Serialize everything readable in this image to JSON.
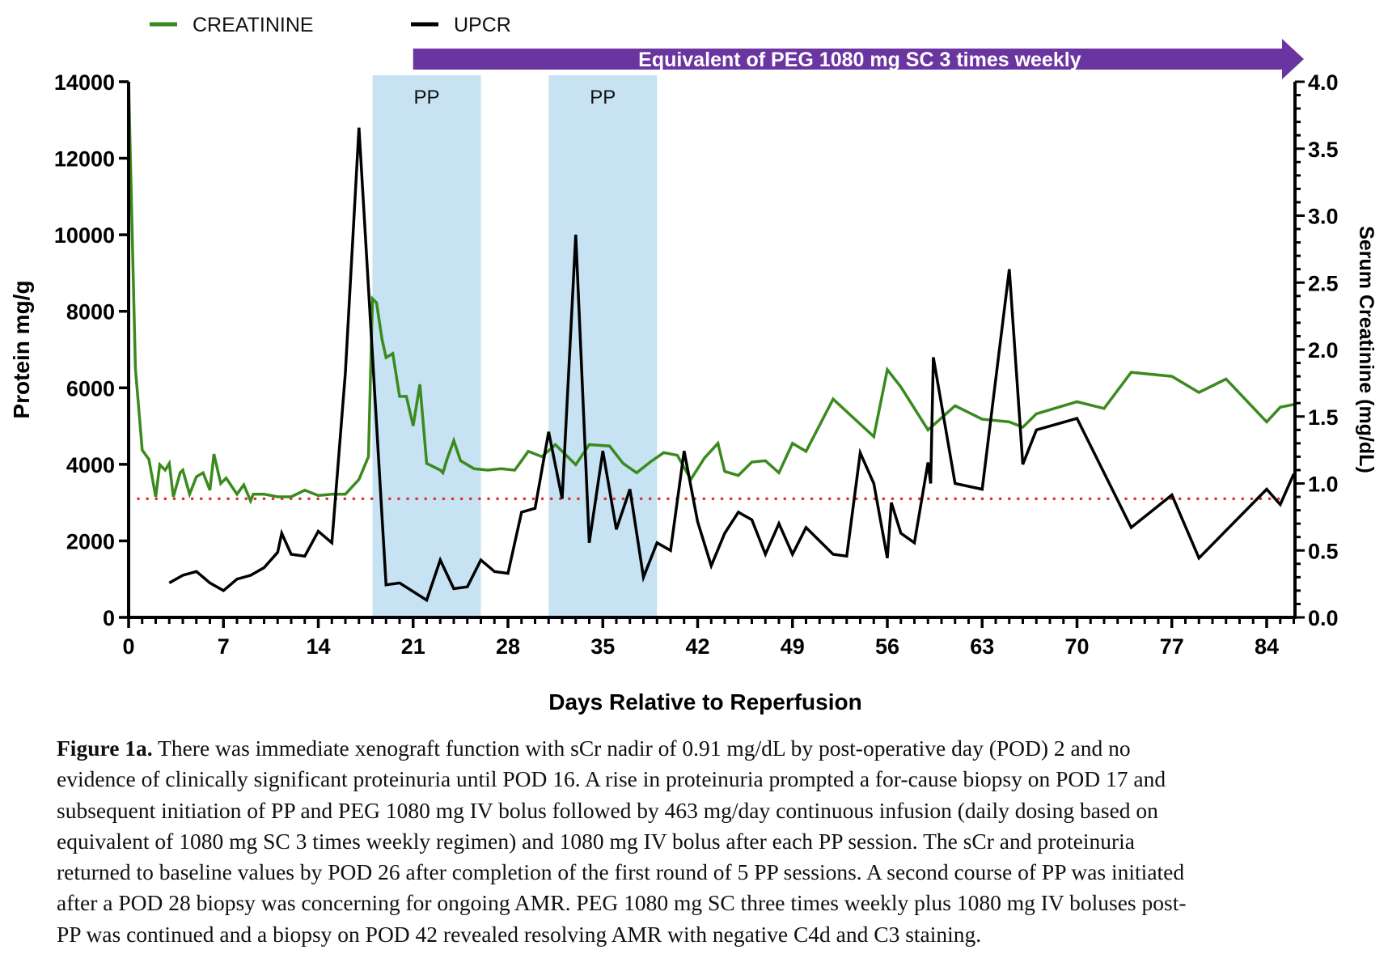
{
  "chart_data": {
    "type": "line",
    "xlabel": "Days Relative to Reperfusion",
    "ylabel": "Protein mg/g",
    "y2label": "Serum Creatinine  (mg/dL)",
    "xlim": [
      0,
      86
    ],
    "ylim": [
      0,
      14000
    ],
    "y2lim": [
      0,
      4.0
    ],
    "xticks": [
      0,
      7,
      14,
      21,
      28,
      35,
      42,
      49,
      56,
      63,
      70,
      77,
      84
    ],
    "yticks": [
      0,
      2000,
      4000,
      6000,
      8000,
      10000,
      12000,
      14000
    ],
    "y2ticks": [
      "0.0",
      "0.5",
      "1.0",
      "1.5",
      "2.0",
      "2.5",
      "3.0",
      "3.5",
      "4.0"
    ],
    "legend_position": "top-left",
    "series": [
      {
        "name": "CREATININE",
        "axis": "right",
        "color": "#3a8a1e",
        "x": [
          0,
          0.5,
          1,
          1.5,
          2,
          2.3,
          2.7,
          3,
          3.3,
          3.8,
          4,
          4.5,
          5,
          5.5,
          6,
          6.3,
          6.8,
          7.2,
          8,
          8.5,
          9,
          9.2,
          10,
          11,
          12,
          13,
          14,
          15,
          16,
          17,
          17.7,
          18,
          18.3,
          18.7,
          19,
          19.5,
          20,
          20.5,
          21,
          21.5,
          22,
          23,
          23.2,
          23.5,
          24,
          24.5,
          25.5,
          26.5,
          27.5,
          28.5,
          29.5,
          30.5,
          31.5,
          33,
          34,
          35.5,
          36.5,
          37.5,
          38.5,
          39.5,
          40.5,
          41.5,
          42.5,
          43.5,
          44,
          45,
          46,
          47,
          48,
          49,
          50,
          52,
          55,
          56,
          57,
          59,
          61,
          63,
          65,
          66,
          67,
          70,
          72,
          74,
          77,
          79,
          81,
          84,
          85,
          86
        ],
        "y": [
          4.0,
          1.86,
          1.25,
          1.18,
          0.9,
          1.14,
          1.1,
          1.15,
          0.9,
          1.08,
          1.1,
          0.92,
          1.05,
          1.08,
          0.95,
          1.22,
          1.0,
          1.04,
          0.92,
          0.99,
          0.87,
          0.92,
          0.92,
          0.9,
          0.9,
          0.95,
          0.91,
          0.92,
          0.92,
          1.03,
          1.2,
          2.38,
          2.35,
          2.08,
          1.94,
          1.97,
          1.65,
          1.65,
          1.43,
          1.74,
          1.15,
          1.1,
          1.08,
          1.18,
          1.32,
          1.17,
          1.11,
          1.1,
          1.11,
          1.1,
          1.24,
          1.2,
          1.29,
          1.14,
          1.29,
          1.28,
          1.15,
          1.08,
          1.16,
          1.23,
          1.21,
          1.03,
          1.19,
          1.3,
          1.09,
          1.06,
          1.16,
          1.17,
          1.08,
          1.3,
          1.24,
          1.63,
          1.35,
          1.85,
          1.72,
          1.4,
          1.58,
          1.48,
          1.46,
          1.42,
          1.52,
          1.61,
          1.56,
          1.83,
          1.8,
          1.68,
          1.78,
          1.46,
          1.57,
          1.59
        ]
      },
      {
        "name": "UPCR",
        "axis": "left",
        "color": "#000000",
        "x": [
          3,
          4,
          5,
          6,
          7,
          8,
          9,
          10,
          11,
          11.3,
          12,
          13,
          14,
          15,
          16,
          17,
          19,
          20,
          22,
          23,
          24,
          25,
          26,
          27,
          28,
          29,
          30,
          31,
          32,
          33,
          34,
          35,
          36,
          37,
          38,
          39,
          40,
          41,
          42,
          43,
          44,
          45,
          46,
          47,
          48,
          49,
          50,
          52,
          53,
          54,
          55,
          56,
          56.3,
          57,
          58,
          59,
          59.2,
          59.4,
          61,
          63,
          65,
          66,
          67,
          70,
          74,
          77,
          79,
          84,
          85,
          86
        ],
        "y": [
          900,
          1100,
          1200,
          900,
          700,
          1000,
          1100,
          1300,
          1700,
          2200,
          1650,
          1600,
          2250,
          1950,
          6400,
          12800,
          850,
          900,
          450,
          1500,
          750,
          800,
          1500,
          1200,
          1150,
          2750,
          2850,
          4850,
          3100,
          10000,
          1950,
          4350,
          2300,
          3350,
          1050,
          1950,
          1750,
          4350,
          2500,
          1350,
          2200,
          2750,
          2550,
          1650,
          2450,
          1650,
          2350,
          1650,
          1600,
          4300,
          3500,
          1550,
          3000,
          2200,
          1950,
          4050,
          3500,
          6800,
          3500,
          3350,
          9100,
          4000,
          4900,
          5200,
          2350,
          3200,
          1550,
          3350,
          2950,
          3750
        ]
      }
    ],
    "reference_line": {
      "value": 3100,
      "style": "dotted",
      "color": "#e03030"
    },
    "shaded_regions": [
      {
        "label": "PP",
        "x": [
          18,
          26
        ],
        "color": "#c6e2f3"
      },
      {
        "label": "PP",
        "x": [
          31,
          39
        ],
        "color": "#c6e2f3"
      }
    ],
    "arrow": {
      "label": "Equivalent of PEG 1080 mg SC 3 times weekly",
      "x_start": 21,
      "color": "#6a35a0"
    }
  },
  "caption": {
    "lead": "Figure 1a.",
    "lines": [
      " There was immediate xenograft function with sCr nadir of 0.91 mg/dL by post-operative day (POD) 2 and no",
      "evidence of clinically significant proteinuria until POD 16. A rise in proteinuria prompted a for-cause biopsy on POD 17 and",
      "subsequent initiation of PP and PEG 1080 mg IV bolus followed by 463 mg/day continuous infusion (daily dosing based on",
      "equivalent of 1080 mg SC 3 times weekly regimen) and 1080 mg IV bolus after each PP session. The sCr and proteinuria",
      "returned to baseline values by POD 26 after completion of the first round of 5 PP sessions. A second course of PP was initiated",
      "after a POD 28 biopsy was concerning for ongoing AMR. PEG 1080 mg SC three times weekly plus 1080 mg IV boluses post-",
      "PP was continued and a biopsy on POD 42 revealed resolving AMR with negative C4d and C3 staining."
    ]
  }
}
